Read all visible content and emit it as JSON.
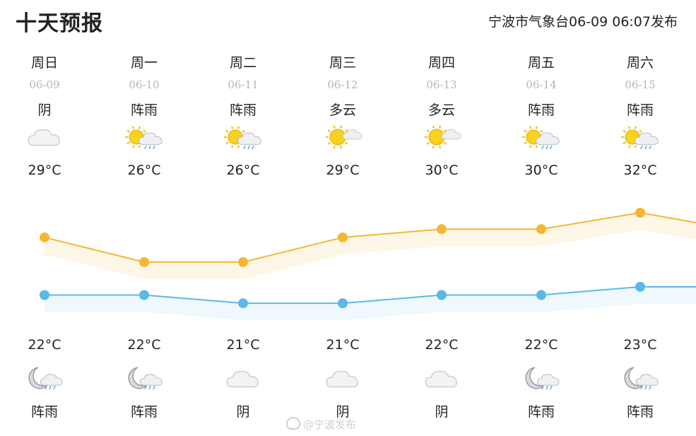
{
  "title": "十天预报",
  "issued": "宁波市气象台06-09 06:07发布",
  "watermark": "@宁波发布",
  "days": [
    {
      "day": "周日",
      "date": "06-09",
      "day_weather": "阴",
      "high": "29°C",
      "low": "22°C",
      "night_weather": "阵雨",
      "day_icon": "overcast-icon",
      "night_icon": "night-shower-icon"
    },
    {
      "day": "周一",
      "date": "06-10",
      "day_weather": "阵雨",
      "high": "26°C",
      "low": "22°C",
      "night_weather": "阵雨",
      "day_icon": "sun-shower-icon",
      "night_icon": "night-shower-icon"
    },
    {
      "day": "周二",
      "date": "06-11",
      "day_weather": "阵雨",
      "high": "26°C",
      "low": "21°C",
      "night_weather": "阴",
      "day_icon": "sun-shower-icon",
      "night_icon": "overcast-icon"
    },
    {
      "day": "周三",
      "date": "06-12",
      "day_weather": "多云",
      "high": "29°C",
      "low": "21°C",
      "night_weather": "阴",
      "day_icon": "partly-cloudy-icon",
      "night_icon": "overcast-icon"
    },
    {
      "day": "周四",
      "date": "06-13",
      "day_weather": "多云",
      "high": "30°C",
      "low": "22°C",
      "night_weather": "阴",
      "day_icon": "partly-cloudy-icon",
      "night_icon": "overcast-icon"
    },
    {
      "day": "周五",
      "date": "06-14",
      "day_weather": "阵雨",
      "high": "30°C",
      "low": "22°C",
      "night_weather": "阵雨",
      "day_icon": "sun-shower-icon",
      "night_icon": "night-shower-icon"
    },
    {
      "day": "周六",
      "date": "06-15",
      "day_weather": "阵雨",
      "high": "32°C",
      "low": "23°C",
      "night_weather": "阵雨",
      "day_icon": "sun-shower-icon",
      "night_icon": "night-shower-icon"
    }
  ],
  "chart_data": {
    "type": "line",
    "x": [
      "06-09",
      "06-10",
      "06-11",
      "06-12",
      "06-13",
      "06-14",
      "06-15"
    ],
    "series": [
      {
        "values": [
          29,
          26,
          26,
          29,
          30,
          30,
          32
        ],
        "color": "#f5b731"
      },
      {
        "values": [
          22,
          22,
          21,
          21,
          22,
          22,
          23
        ],
        "color": "#5bb8e8"
      }
    ],
    "ylim": [
      18,
      35
    ],
    "grid": false
  }
}
